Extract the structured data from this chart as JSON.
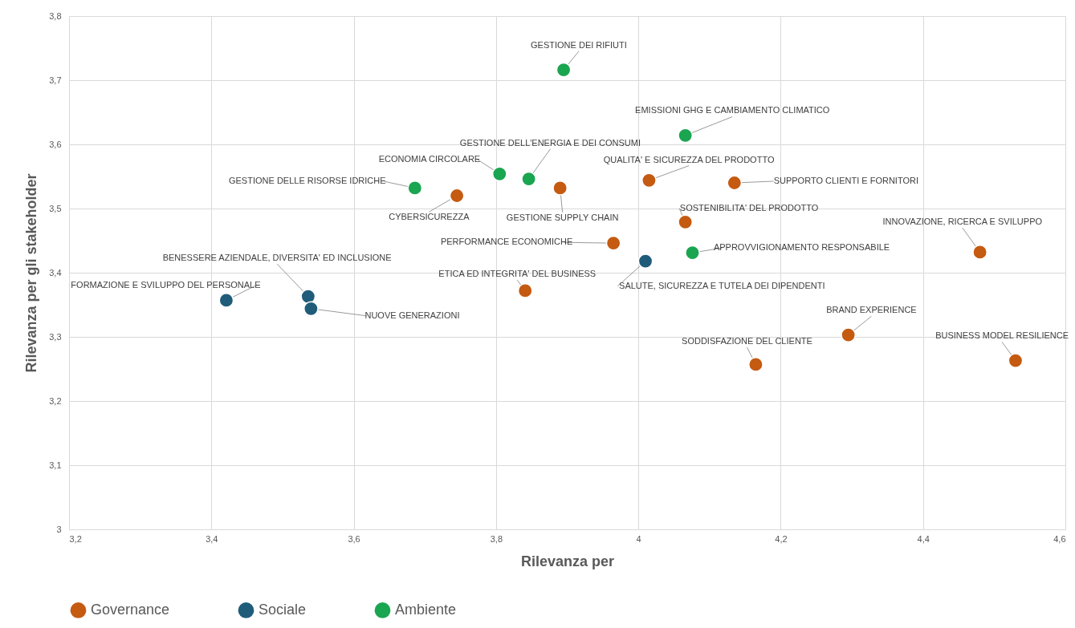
{
  "chart_data": {
    "type": "scatter",
    "xlabel": "Rilevanza per",
    "ylabel": "Rilevanza per gli stakeholder",
    "xlim": [
      3.2,
      4.6
    ],
    "xticks": [
      {
        "value": 3.2,
        "label": "3,2"
      },
      {
        "value": 3.4,
        "label": "3,4"
      },
      {
        "value": 3.6,
        "label": "3,6"
      },
      {
        "value": 3.8,
        "label": "3,8"
      },
      4,
      {
        "value": 4.2,
        "label": "4,2"
      },
      {
        "value": 4.4,
        "label": "4,4"
      },
      {
        "value": 4.6,
        "label": "4,6"
      }
    ],
    "ylim": [
      3,
      3.8
    ],
    "yticks": [
      3,
      {
        "value": 3.1,
        "label": "3,1"
      },
      {
        "value": 3.2,
        "label": "3,2"
      },
      {
        "value": 3.3,
        "label": "3,3"
      },
      {
        "value": 3.4,
        "label": "3,4"
      },
      {
        "value": 3.5,
        "label": "3,5"
      },
      {
        "value": 3.6,
        "label": "3,6"
      },
      {
        "value": 3.7,
        "label": "3,7"
      },
      {
        "value": 3.8,
        "label": "3,8"
      }
    ],
    "grid": true,
    "legend": "bottom",
    "marker": "circle",
    "series": [
      {
        "name": "Governance",
        "color": "#c55a11",
        "x": [
          3.745,
          3.89,
          4.015,
          4.135,
          4.066,
          3.965,
          3.841,
          4.48,
          4.295,
          4.165,
          4.53
        ],
        "values": [
          3.52,
          3.532,
          3.544,
          3.54,
          3.479,
          3.446,
          3.372,
          3.432,
          3.303,
          3.257,
          3.263
        ]
      },
      {
        "name": "Sociale",
        "color": "#1f5c7a",
        "x": [
          3.421,
          3.536,
          3.54,
          4.01
        ],
        "values": [
          3.357,
          3.363,
          3.344,
          3.418
        ]
      },
      {
        "name": "Ambiente",
        "color": "#1aa550",
        "x": [
          3.895,
          4.066,
          3.846,
          3.805,
          3.686,
          4.076
        ],
        "values": [
          3.716,
          3.614,
          3.546,
          3.554,
          3.532,
          3.431
        ]
      }
    ],
    "annotations": [
      {
        "text": "GESTIONE DEI RIFIUTI",
        "x": 3.895,
        "y": 3.716
      },
      {
        "text": "EMISSIONI GHG E CAMBIAMENTO CLIMATICO",
        "x": 4.066,
        "y": 3.614
      },
      {
        "text": "GESTIONE DELL'ENERGIA E DEI CONSUMI",
        "x": 3.846,
        "y": 3.546
      },
      {
        "text": "ECONOMIA CIRCOLARE",
        "x": 3.805,
        "y": 3.554
      },
      {
        "text": "GESTIONE DELLE RISORSE IDRICHE",
        "x": 3.686,
        "y": 3.532
      },
      {
        "text": "CYBERSICUREZZA",
        "x": 3.745,
        "y": 3.52
      },
      {
        "text": "GESTIONE SUPPLY CHAIN",
        "x": 3.89,
        "y": 3.532
      },
      {
        "text": "QUALITA' E SICUREZZA DEL PRODOTTO",
        "x": 4.015,
        "y": 3.544
      },
      {
        "text": "SUPPORTO CLIENTI E FORNITORI",
        "x": 4.135,
        "y": 3.54
      },
      {
        "text": "SOSTENIBILITA' DEL PRODOTTO",
        "x": 4.066,
        "y": 3.479
      },
      {
        "text": "PERFORMANCE ECONOMICHE",
        "x": 3.965,
        "y": 3.446
      },
      {
        "text": "APPROVVIGIONAMENTO RESPONSABILE",
        "x": 4.076,
        "y": 3.431
      },
      {
        "text": "INNOVAZIONE, RICERCA E SVILUPPO",
        "x": 4.48,
        "y": 3.432
      },
      {
        "text": "SALUTE, SICUREZZA E TUTELA DEI DIPENDENTI",
        "x": 4.01,
        "y": 3.418
      },
      {
        "text": "ETICA ED INTEGRITA' DEL BUSINESS",
        "x": 3.841,
        "y": 3.372
      },
      {
        "text": "BENESSERE AZIENDALE, DIVERSITA' ED INCLUSIONE",
        "x": 3.536,
        "y": 3.363
      },
      {
        "text": "FORMAZIONE E SVILUPPO DEL PERSONALE",
        "x": 3.421,
        "y": 3.357
      },
      {
        "text": "NUOVE GENERAZIONI",
        "x": 3.54,
        "y": 3.344
      },
      {
        "text": "BRAND EXPERIENCE",
        "x": 4.295,
        "y": 3.303
      },
      {
        "text": "SODDISFAZIONE DEL CLIENTE",
        "x": 4.165,
        "y": 3.257
      },
      {
        "text": "BUSINESS MODEL RESILIENCE",
        "x": 4.53,
        "y": 3.263
      }
    ]
  }
}
